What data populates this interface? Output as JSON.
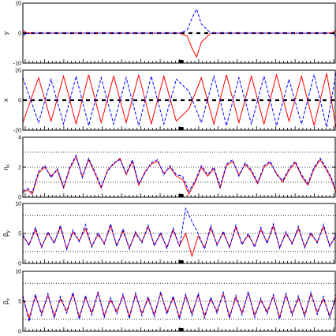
{
  "chart_data": [
    {
      "type": "line",
      "ylabel": "y",
      "ylim": [
        -10,
        10
      ],
      "yticks": [
        -10,
        0,
        10
      ],
      "guides": [],
      "center_dashed": true,
      "series": [
        {
          "color": "#ff0000",
          "style": "solid",
          "x": [
            0,
            0.01,
            0.03,
            0.5,
            0.525,
            0.54,
            0.555,
            0.57,
            0.6,
            0.97,
            0.99,
            1
          ],
          "y": [
            1,
            0.2,
            0,
            0,
            -1,
            -5,
            -8,
            -3,
            0,
            0,
            0.2,
            1
          ]
        },
        {
          "color": "#0000ff",
          "style": "dashed",
          "x": [
            0,
            0.01,
            0.03,
            0.5,
            0.525,
            0.54,
            0.555,
            0.57,
            0.6,
            0.97,
            0.99,
            1
          ],
          "y": [
            -1,
            -0.2,
            0,
            0,
            1,
            5,
            8,
            3,
            0,
            0,
            -0.2,
            -1
          ]
        }
      ]
    },
    {
      "type": "line",
      "ylabel": "x",
      "ylim": [
        -20,
        20
      ],
      "yticks": [
        -20,
        0,
        20
      ],
      "guides": [],
      "center_dashed": true,
      "series": [
        {
          "color": "#ff0000",
          "style": "solid",
          "x": [
            0,
            0.05,
            0.09,
            0.13,
            0.17,
            0.21,
            0.25,
            0.29,
            0.33,
            0.37,
            0.41,
            0.45,
            0.49,
            0.53,
            0.57,
            0.61,
            0.65,
            0.69,
            0.73,
            0.77,
            0.81,
            0.85,
            0.89,
            0.93,
            0.97,
            1
          ],
          "y": [
            -15,
            15,
            -14,
            16,
            -16,
            17,
            -15,
            16,
            -15,
            17,
            -16,
            16,
            -14,
            -6,
            15,
            -16,
            17,
            -15,
            16,
            -16,
            17,
            -14,
            16,
            -17,
            18,
            -18
          ]
        },
        {
          "color": "#0000ff",
          "style": "dashed",
          "x": [
            0,
            0.05,
            0.09,
            0.13,
            0.17,
            0.21,
            0.25,
            0.29,
            0.33,
            0.37,
            0.41,
            0.45,
            0.49,
            0.53,
            0.57,
            0.61,
            0.65,
            0.69,
            0.73,
            0.77,
            0.81,
            0.85,
            0.89,
            0.93,
            0.97,
            1
          ],
          "y": [
            15,
            -15,
            14,
            -16,
            16,
            -17,
            15,
            -16,
            15,
            -17,
            16,
            -16,
            14,
            6,
            -15,
            16,
            -17,
            15,
            -16,
            16,
            -17,
            14,
            -16,
            17,
            -18,
            18
          ]
        }
      ]
    },
    {
      "type": "line",
      "ylabel": "η",
      "ylabel_sub": "x",
      "ylim": [
        0,
        4
      ],
      "yticks": [
        0,
        2,
        4
      ],
      "guides": [
        1,
        2,
        3
      ],
      "center_dashed": false,
      "series": [
        {
          "color": "#ff0000",
          "style": "solid",
          "x": [
            0,
            0.015,
            0.03,
            0.05,
            0.07,
            0.09,
            0.11,
            0.13,
            0.15,
            0.17,
            0.19,
            0.21,
            0.23,
            0.25,
            0.27,
            0.29,
            0.31,
            0.33,
            0.35,
            0.37,
            0.39,
            0.41,
            0.43,
            0.45,
            0.47,
            0.49,
            0.51,
            0.53,
            0.55,
            0.57,
            0.59,
            0.61,
            0.63,
            0.65,
            0.67,
            0.69,
            0.71,
            0.73,
            0.75,
            0.77,
            0.79,
            0.81,
            0.83,
            0.85,
            0.87,
            0.89,
            0.91,
            0.93,
            0.95,
            0.97,
            0.985,
            1
          ],
          "y": [
            0.3,
            0.5,
            0.2,
            1.6,
            2.0,
            1.4,
            1.8,
            0.6,
            1.9,
            2.7,
            1.4,
            2.5,
            1.6,
            0.6,
            1.8,
            2.2,
            2.6,
            1.5,
            2.4,
            0.8,
            1.7,
            2.2,
            2.4,
            1.6,
            2.0,
            1.4,
            1.2,
            0.2,
            1.0,
            2.0,
            1.4,
            1.9,
            0.6,
            2.1,
            2.4,
            1.5,
            2.2,
            1.7,
            0.9,
            2.0,
            2.3,
            1.6,
            1.0,
            1.8,
            2.3,
            1.4,
            0.8,
            1.9,
            2.5,
            1.8,
            1.2,
            0.3
          ]
        },
        {
          "color": "#0000ff",
          "style": "dashed",
          "x": [
            0,
            0.015,
            0.03,
            0.05,
            0.07,
            0.09,
            0.11,
            0.13,
            0.15,
            0.17,
            0.19,
            0.21,
            0.23,
            0.25,
            0.27,
            0.29,
            0.31,
            0.33,
            0.35,
            0.37,
            0.39,
            0.41,
            0.43,
            0.45,
            0.47,
            0.49,
            0.51,
            0.53,
            0.55,
            0.57,
            0.59,
            0.61,
            0.63,
            0.65,
            0.67,
            0.69,
            0.71,
            0.73,
            0.75,
            0.77,
            0.79,
            0.81,
            0.83,
            0.85,
            0.87,
            0.89,
            0.91,
            0.93,
            0.95,
            0.97,
            0.985,
            1
          ],
          "y": [
            0.4,
            0.6,
            0.3,
            1.7,
            2.1,
            1.3,
            1.9,
            0.7,
            2.0,
            2.8,
            1.3,
            2.6,
            1.7,
            0.7,
            1.7,
            2.3,
            2.5,
            1.6,
            2.5,
            0.9,
            1.6,
            2.3,
            2.5,
            1.5,
            2.1,
            1.5,
            1.4,
            0.4,
            1.1,
            2.1,
            1.5,
            2.0,
            0.7,
            2.2,
            2.5,
            1.4,
            2.3,
            1.8,
            1.0,
            2.1,
            2.4,
            1.5,
            1.1,
            1.9,
            2.4,
            1.5,
            0.9,
            2.0,
            2.6,
            1.9,
            1.3,
            0.4
          ]
        }
      ]
    },
    {
      "type": "line",
      "ylabel": "β",
      "ylabel_sub": "y",
      "ylim": [
        0,
        10
      ],
      "yticks": [
        0,
        5,
        10
      ],
      "guides": [
        2,
        5,
        8
      ],
      "center_dashed": false,
      "series": [
        {
          "color": "#ff0000",
          "style": "solid",
          "x": [
            0,
            0.02,
            0.04,
            0.06,
            0.08,
            0.1,
            0.12,
            0.14,
            0.16,
            0.18,
            0.2,
            0.22,
            0.24,
            0.26,
            0.28,
            0.3,
            0.32,
            0.34,
            0.36,
            0.38,
            0.4,
            0.42,
            0.44,
            0.46,
            0.48,
            0.5,
            0.52,
            0.54,
            0.56,
            0.58,
            0.6,
            0.62,
            0.64,
            0.66,
            0.68,
            0.7,
            0.72,
            0.74,
            0.76,
            0.78,
            0.8,
            0.82,
            0.84,
            0.86,
            0.88,
            0.9,
            0.92,
            0.94,
            0.96,
            0.98,
            1
          ],
          "y": [
            4.5,
            3.2,
            5.6,
            2.8,
            5.0,
            3.5,
            6.0,
            2.5,
            5.2,
            3.8,
            5.8,
            2.9,
            4.8,
            3.4,
            6.2,
            3.0,
            5.4,
            2.6,
            5.0,
            3.6,
            6.1,
            3.1,
            4.9,
            2.7,
            5.5,
            3.0,
            5.0,
            1.2,
            4.6,
            2.6,
            5.9,
            3.2,
            5.1,
            2.8,
            6.0,
            3.3,
            4.7,
            2.9,
            5.6,
            3.5,
            6.2,
            2.7,
            5.0,
            3.4,
            5.8,
            2.8,
            4.9,
            3.6,
            6.1,
            3.0,
            4.5
          ]
        },
        {
          "color": "#0000ff",
          "style": "dashed",
          "x": [
            0,
            0.02,
            0.04,
            0.06,
            0.08,
            0.1,
            0.12,
            0.14,
            0.16,
            0.18,
            0.2,
            0.22,
            0.24,
            0.26,
            0.28,
            0.3,
            0.32,
            0.34,
            0.36,
            0.38,
            0.4,
            0.42,
            0.44,
            0.46,
            0.48,
            0.5,
            0.52,
            0.54,
            0.56,
            0.58,
            0.6,
            0.62,
            0.64,
            0.66,
            0.68,
            0.7,
            0.72,
            0.74,
            0.76,
            0.78,
            0.8,
            0.82,
            0.84,
            0.86,
            0.88,
            0.9,
            0.92,
            0.94,
            0.96,
            0.98,
            1
          ],
          "y": [
            4.8,
            3.0,
            6.0,
            2.6,
            5.3,
            3.3,
            6.4,
            2.3,
            5.6,
            3.6,
            6.5,
            2.7,
            5.1,
            3.2,
            6.6,
            2.8,
            5.8,
            2.4,
            5.3,
            3.4,
            6.4,
            2.9,
            5.2,
            2.5,
            5.9,
            2.8,
            9.2,
            7.0,
            5.0,
            2.4,
            6.3,
            3.0,
            5.4,
            2.6,
            6.4,
            3.1,
            5.0,
            2.7,
            6.0,
            3.3,
            6.6,
            2.5,
            5.3,
            3.2,
            6.2,
            2.6,
            5.2,
            3.4,
            6.5,
            2.8,
            4.8
          ]
        }
      ]
    },
    {
      "type": "line",
      "ylabel": "β",
      "ylabel_sub": "x",
      "ylim": [
        0,
        10
      ],
      "yticks": [
        0,
        5,
        10
      ],
      "guides": [
        2,
        5,
        8
      ],
      "center_dashed": false,
      "series": [
        {
          "color": "#ff0000",
          "style": "solid",
          "x": [
            0,
            0.02,
            0.04,
            0.06,
            0.08,
            0.1,
            0.12,
            0.14,
            0.16,
            0.18,
            0.2,
            0.22,
            0.24,
            0.26,
            0.28,
            0.3,
            0.32,
            0.34,
            0.36,
            0.38,
            0.4,
            0.42,
            0.44,
            0.46,
            0.48,
            0.5,
            0.52,
            0.54,
            0.56,
            0.58,
            0.6,
            0.62,
            0.64,
            0.66,
            0.68,
            0.7,
            0.72,
            0.74,
            0.76,
            0.78,
            0.8,
            0.82,
            0.84,
            0.86,
            0.88,
            0.9,
            0.92,
            0.94,
            0.96,
            0.98,
            1
          ],
          "y": [
            5.5,
            2.2,
            5.8,
            3.0,
            6.0,
            2.6,
            5.4,
            3.4,
            6.2,
            2.4,
            5.6,
            3.1,
            6.4,
            2.7,
            5.2,
            3.3,
            5.9,
            2.5,
            6.1,
            3.0,
            5.4,
            2.8,
            6.3,
            3.2,
            5.5,
            2.4,
            5.9,
            3.0,
            6.0,
            2.6,
            5.3,
            3.4,
            6.2,
            2.5,
            5.6,
            3.1,
            6.4,
            2.7,
            5.1,
            3.3,
            5.8,
            2.4,
            6.0,
            3.0,
            5.5,
            2.8,
            6.2,
            3.2,
            5.4,
            2.6,
            5.5
          ]
        },
        {
          "color": "#0000ff",
          "style": "dashed",
          "x": [
            0,
            0.02,
            0.04,
            0.06,
            0.08,
            0.1,
            0.12,
            0.14,
            0.16,
            0.18,
            0.2,
            0.22,
            0.24,
            0.26,
            0.28,
            0.3,
            0.32,
            0.34,
            0.36,
            0.38,
            0.4,
            0.42,
            0.44,
            0.46,
            0.48,
            0.5,
            0.52,
            0.54,
            0.56,
            0.58,
            0.6,
            0.62,
            0.64,
            0.66,
            0.68,
            0.7,
            0.72,
            0.74,
            0.76,
            0.78,
            0.8,
            0.82,
            0.84,
            0.86,
            0.88,
            0.9,
            0.92,
            0.94,
            0.96,
            0.98,
            1
          ],
          "y": [
            6.0,
            1.6,
            6.2,
            2.6,
            6.3,
            2.2,
            5.8,
            3.0,
            6.5,
            2.0,
            6.0,
            2.7,
            6.6,
            2.3,
            5.6,
            2.9,
            6.2,
            2.1,
            6.4,
            2.6,
            5.8,
            2.4,
            6.6,
            2.8,
            5.9,
            2.0,
            6.2,
            2.6,
            6.3,
            2.2,
            5.7,
            3.0,
            6.5,
            2.1,
            6.0,
            2.7,
            6.6,
            2.3,
            5.5,
            2.9,
            6.1,
            2.0,
            6.3,
            2.6,
            5.9,
            2.4,
            6.5,
            2.8,
            5.8,
            2.2,
            6.0
          ]
        }
      ]
    }
  ]
}
